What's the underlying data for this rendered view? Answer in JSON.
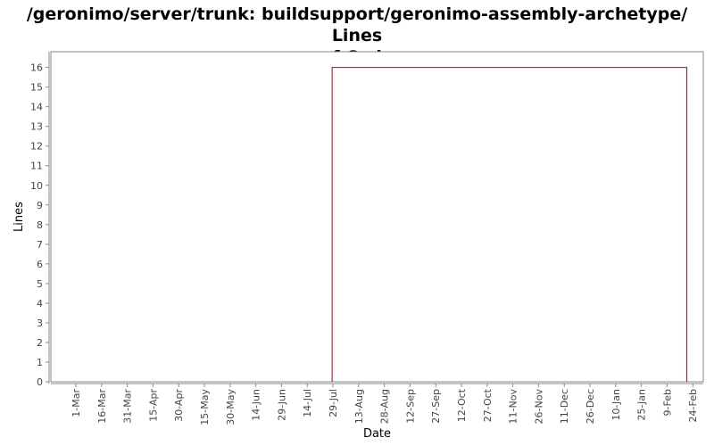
{
  "chart_data": {
    "type": "line",
    "title_line1": "/geronimo/server/trunk: buildsupport/geronimo-assembly-archetype/ Lines",
    "title_line2": "of Code",
    "xlabel": "Date",
    "ylabel": "Lines",
    "x_ticks": [
      "1-Mar",
      "16-Mar",
      "31-Mar",
      "15-Apr",
      "30-Apr",
      "15-May",
      "30-May",
      "14-Jun",
      "29-Jun",
      "14-Jul",
      "29-Jul",
      "13-Aug",
      "28-Aug",
      "12-Sep",
      "27-Sep",
      "12-Oct",
      "27-Oct",
      "11-Nov",
      "26-Nov",
      "11-Dec",
      "26-Dec",
      "10-Jan",
      "25-Jan",
      "9-Feb",
      "24-Feb"
    ],
    "y_ticks": [
      0,
      1,
      2,
      3,
      4,
      5,
      6,
      7,
      8,
      9,
      10,
      11,
      12,
      13,
      14,
      15,
      16
    ],
    "ylim": [
      0,
      16.8
    ],
    "series": [
      {
        "color": "#c00000",
        "points": [
          {
            "x": 9.97,
            "y": 0
          },
          {
            "x": 9.97,
            "y": 16
          },
          {
            "x": 23.77,
            "y": 16
          },
          {
            "x": 23.77,
            "y": 0
          }
        ]
      }
    ],
    "background": "#ffffff",
    "plot_border_color": "#888888"
  }
}
